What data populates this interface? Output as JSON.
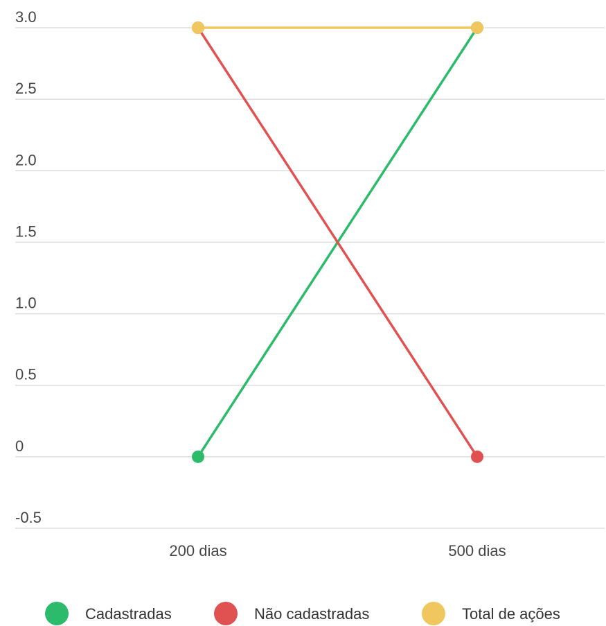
{
  "chart_data": {
    "type": "line",
    "categories": [
      "200 dias",
      "500 dias"
    ],
    "series": [
      {
        "name": "Cadastradas",
        "values": [
          0,
          3
        ],
        "color": "#2bbb6a"
      },
      {
        "name": "Não cadastradas",
        "values": [
          3,
          0
        ],
        "color": "#e05252"
      },
      {
        "name": "Total de ações",
        "values": [
          3,
          3
        ],
        "color": "#f0c75e"
      }
    ],
    "ylim": [
      -0.5,
      3.0
    ],
    "yticks": [
      {
        "value": 3.0,
        "label": "3.0"
      },
      {
        "value": 2.5,
        "label": "2.5"
      },
      {
        "value": 2.0,
        "label": "2.0"
      },
      {
        "value": 1.5,
        "label": "1.5"
      },
      {
        "value": 1.0,
        "label": "1.0"
      },
      {
        "value": 0.5,
        "label": "0.5"
      },
      {
        "value": 0,
        "label": "0"
      },
      {
        "value": -0.5,
        "label": "-0.5"
      }
    ],
    "grid": true,
    "legend_position": "bottom",
    "gridline_color": "#dddddd"
  }
}
